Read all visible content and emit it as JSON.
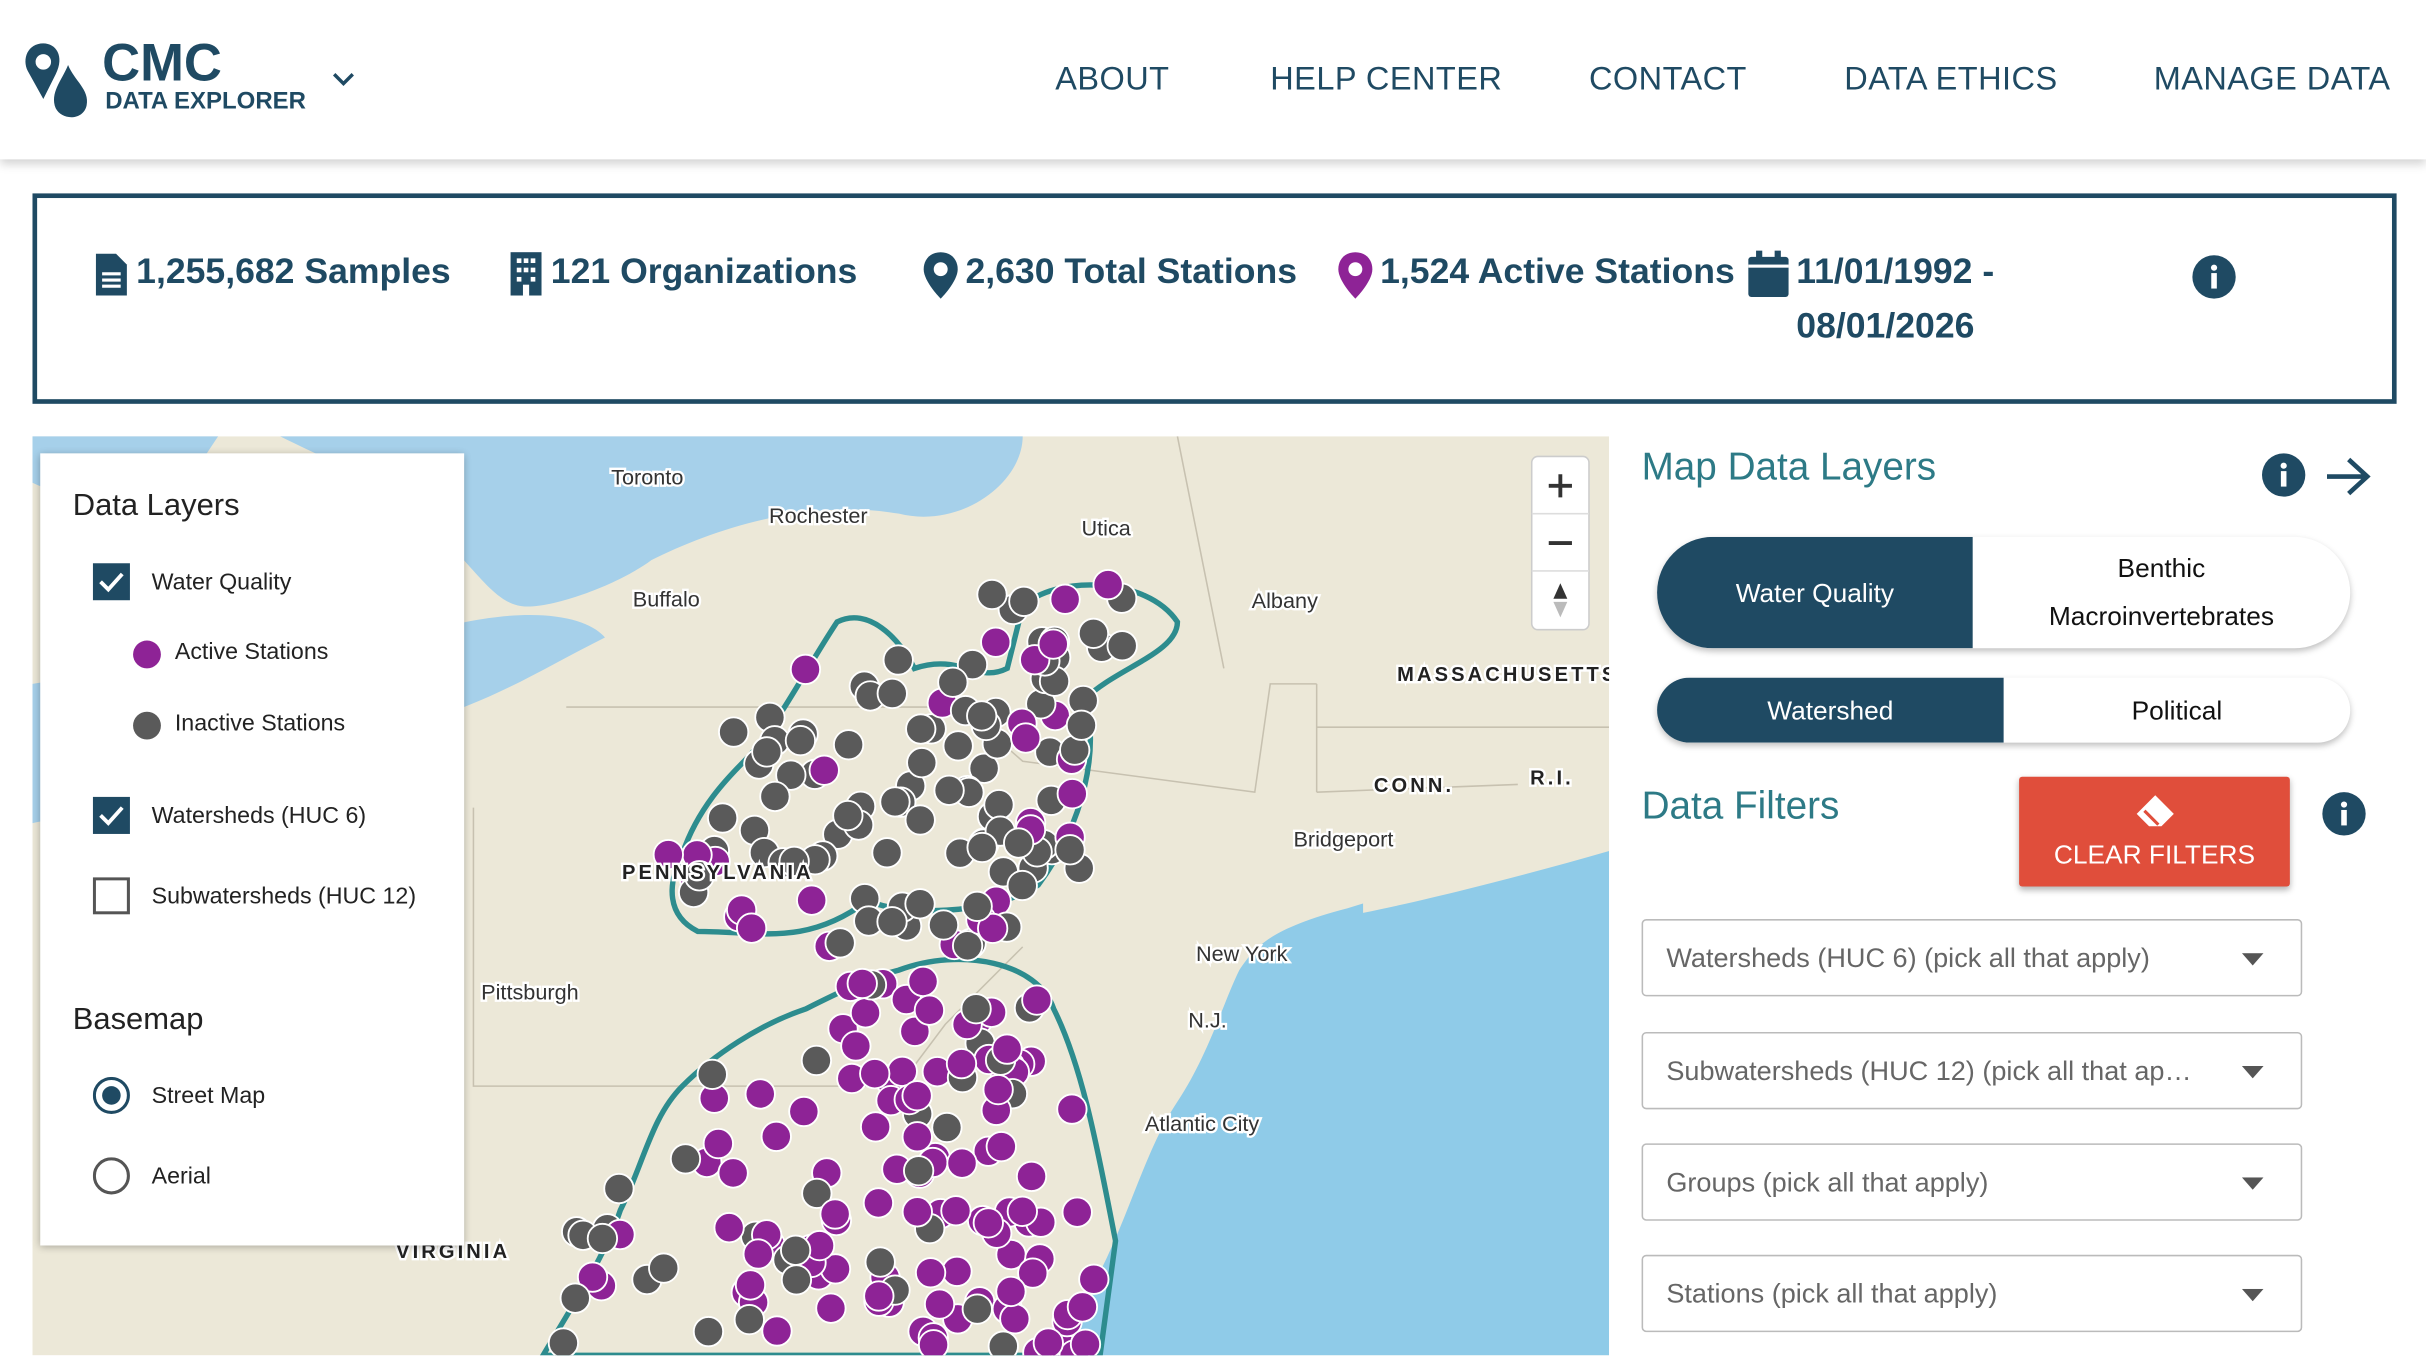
{
  "header": {
    "logo_title": "CMC",
    "logo_subtitle": "DATA EXPLORER",
    "nav": [
      "ABOUT",
      "HELP CENTER",
      "CONTACT",
      "DATA ETHICS",
      "MANAGE DATA"
    ]
  },
  "stats": {
    "samples": "1,255,682 Samples",
    "organizations": "121 Organizations",
    "total_stations": "2,630 Total Stations",
    "active_stations": "1,524 Active Stations",
    "date_range": "11/01/1992 - 08/01/2026"
  },
  "map": {
    "labels": [
      "Toronto",
      "Rochester",
      "Utica",
      "Buffalo",
      "Albany",
      "MASSACHUSETTS",
      "CONN.",
      "R.I.",
      "Bridgeport",
      "New York",
      "Pittsburgh",
      "N.J.",
      "Atlantic City",
      "PENNSYLVANIA",
      "VIRGINIA"
    ]
  },
  "layers_panel": {
    "title": "Data Layers",
    "water_quality": "Water Quality",
    "active": "Active Stations",
    "inactive": "Inactive Stations",
    "watersheds": "Watersheds (HUC 6)",
    "subwatersheds": "Subwatersheds (HUC 12)",
    "basemap_title": "Basemap",
    "street": "Street Map",
    "aerial": "Aerial"
  },
  "sidebar": {
    "map_layers_title": "Map Data Layers",
    "toggle_data": [
      "Water Quality",
      "Benthic Macroinvertebrates"
    ],
    "toggle_boundary": [
      "Watershed",
      "Political"
    ],
    "filters_title": "Data Filters",
    "clear": "CLEAR FILTERS",
    "dropdowns": [
      "Watersheds (HUC 6) (pick all that apply)",
      "Subwatersheds (HUC 12) (pick all that ap…",
      "Groups (pick all that apply)",
      "Stations (pick all that apply)"
    ]
  }
}
